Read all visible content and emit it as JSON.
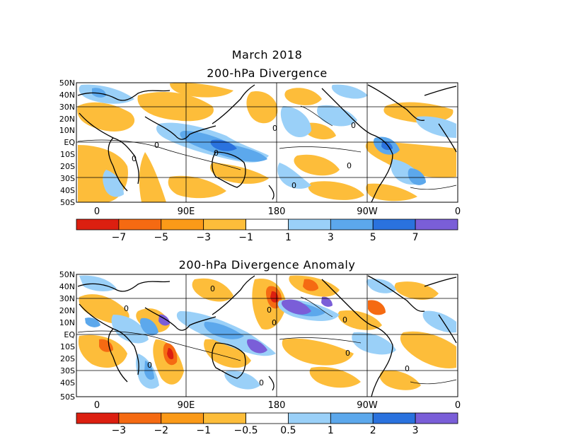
{
  "title": "March 2018",
  "panels": [
    {
      "subtitle": "200-hPa Divergence",
      "lat_labels": [
        "50N",
        "40N",
        "30N",
        "20N",
        "10N",
        "EQ",
        "10S",
        "20S",
        "30S",
        "40S",
        "50S"
      ],
      "lon_labels": [
        "0",
        "90E",
        "180",
        "90W",
        "0"
      ],
      "colorbar": {
        "colors": [
          "#dc1f10",
          "#f56a12",
          "#fb9a18",
          "#fdbd3a",
          "#ffffff",
          "#9ad0f8",
          "#5ca8ec",
          "#2a72de",
          "#7a5ed8"
        ],
        "labels": [
          "-7",
          "-5",
          "-3",
          "-1",
          "1",
          "3",
          "5",
          "7"
        ]
      }
    },
    {
      "subtitle": "200-hPa Divergence Anomaly",
      "lat_labels": [
        "50N",
        "40N",
        "30N",
        "20N",
        "10N",
        "EQ",
        "10S",
        "20S",
        "30S",
        "40S",
        "50S"
      ],
      "lon_labels": [
        "0",
        "90E",
        "180",
        "90W",
        "0"
      ],
      "colorbar": {
        "colors": [
          "#dc1f10",
          "#f56a12",
          "#fb9a18",
          "#fdbd3a",
          "#ffffff",
          "#9ad0f8",
          "#5ca8ec",
          "#2a72de",
          "#7a5ed8"
        ],
        "labels": [
          "-3",
          "-2",
          "-1",
          "-0.5",
          "0.5",
          "1",
          "2",
          "3"
        ]
      }
    }
  ],
  "contour_label": "0",
  "colors": {
    "orange": "#fdbd3a",
    "dark_orange": "#fb9a18",
    "red": "#f56a12",
    "light_blue": "#9ad0f8",
    "blue": "#5ca8ec",
    "dark_blue": "#2a72de",
    "purple": "#7a5ed8"
  }
}
